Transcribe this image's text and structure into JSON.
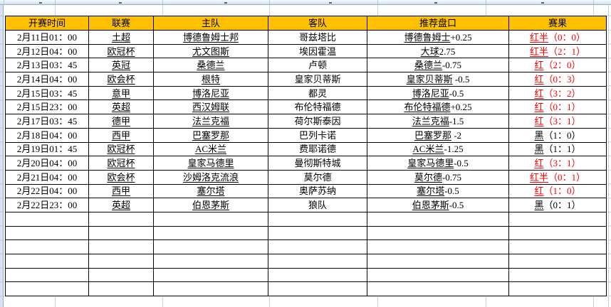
{
  "sheet": {
    "column_headers": {
      "time": "开赛时间",
      "league": "联赛",
      "home": "主队",
      "away": "客队",
      "handicap": "推荐盘口",
      "result": "赛果"
    },
    "rows": [
      {
        "time": "2月11日01：00",
        "league": "土超",
        "home": "博德鲁姆士邦",
        "away": "哥兹塔比",
        "handicap_team": "博德鲁姆士",
        "handicap_line": "+0.25",
        "result_word": "红半",
        "result_score": "（0：0）",
        "result_color": "#FF0000"
      },
      {
        "time": "2月12日04：00",
        "league": "欧冠杯",
        "home": "尤文图斯",
        "away": "埃因霍温",
        "handicap_team": "大球",
        "handicap_line": "2.75",
        "result_word": "红半",
        "result_score": "（2：1）",
        "result_color": "#FF0000"
      },
      {
        "time": "2月13日03：45",
        "league": "英冠",
        "home": "桑德兰",
        "away": "卢顿",
        "handicap_team": "桑德兰",
        "handicap_line": "-0.75",
        "result_word": "红",
        "result_score": "（2：0）",
        "result_color": "#FF0000"
      },
      {
        "time": "2月14日04：00",
        "league": "欧会杯",
        "home": "根特",
        "away": "皇家贝蒂斯",
        "handicap_team": "皇家贝蒂斯",
        "handicap_line": " -0.5",
        "result_word": "红",
        "result_score": "（0：3）",
        "result_color": "#FF0000"
      },
      {
        "time": "2月15日03：45",
        "league": "意甲",
        "home": "博洛尼亚",
        "away": "都灵",
        "handicap_team": "博洛尼亚",
        "handicap_line": "-0.5",
        "result_word": "红",
        "result_score": "（3：2）",
        "result_color": "#FF0000"
      },
      {
        "time": "2月15日23：00",
        "league": "英超",
        "home": "西汉姆联",
        "away": "布伦特福德",
        "handicap_team": "布伦特福德",
        "handicap_line": "+0.25",
        "result_word": "红",
        "result_score": "（0：1）",
        "result_color": "#FF0000"
      },
      {
        "time": "2月17日03：45",
        "league": "德甲",
        "home": "法兰克福",
        "away": "荷尔斯泰因",
        "handicap_team": "法兰克福",
        "handicap_line": "-1.5",
        "result_word": "红",
        "result_score": "（3：1）",
        "result_color": "#FF0000"
      },
      {
        "time": "2月18日04：00",
        "league": "西甲",
        "home": "巴塞罗那",
        "away": "巴列卡诺",
        "handicap_team": "巴塞罗那",
        "handicap_line": " -2",
        "result_word": "黑",
        "result_score": "（1：0）",
        "result_color": "#000000"
      },
      {
        "time": "2月19日01：45",
        "league": "欧冠杯",
        "home": "AC米兰",
        "away": "费耶诺德",
        "handicap_team": "AC米兰",
        "handicap_line": "-1.25",
        "result_word": "黑",
        "result_score": "（1：1）",
        "result_color": "#000000"
      },
      {
        "time": "2月20日04：00",
        "league": "欧冠杯",
        "home": "皇家马德里",
        "away": "曼彻斯特城",
        "handicap_team": "皇家马德里",
        "handicap_line": "-0.5",
        "result_word": "红",
        "result_score": "（3：1）",
        "result_color": "#FF0000"
      },
      {
        "time": "2月21日04：00",
        "league": "欧会杯",
        "home": "沙姆洛克流浪",
        "away": "莫尔德",
        "handicap_team": "莫尔德",
        "handicap_line": "-0.75",
        "result_word": "红半",
        "result_score": "（0：1）",
        "result_color": "#FF0000"
      },
      {
        "time": "2月22日04：00",
        "league": "西甲",
        "home": "塞尔塔",
        "away": "奥萨苏纳",
        "handicap_team": "塞尔塔",
        "handicap_line": "-0.5",
        "result_word": "红",
        "result_score": "（1：0）",
        "result_color": "#FF0000"
      },
      {
        "time": "2月22日23：00",
        "league": "英超",
        "home": "伯恩茅斯",
        "away": "狼队",
        "handicap_team": "伯恩茅斯",
        "handicap_line": "-0.5",
        "result_word": "黑",
        "result_score": "（0：1）",
        "result_color": "#000000"
      }
    ],
    "empty_row_count": 6
  },
  "colors": {
    "header_bg": "#FFC000",
    "result_red": "#FF0000",
    "result_black": "#000000",
    "gridline_blue": "#C3D1E4"
  }
}
